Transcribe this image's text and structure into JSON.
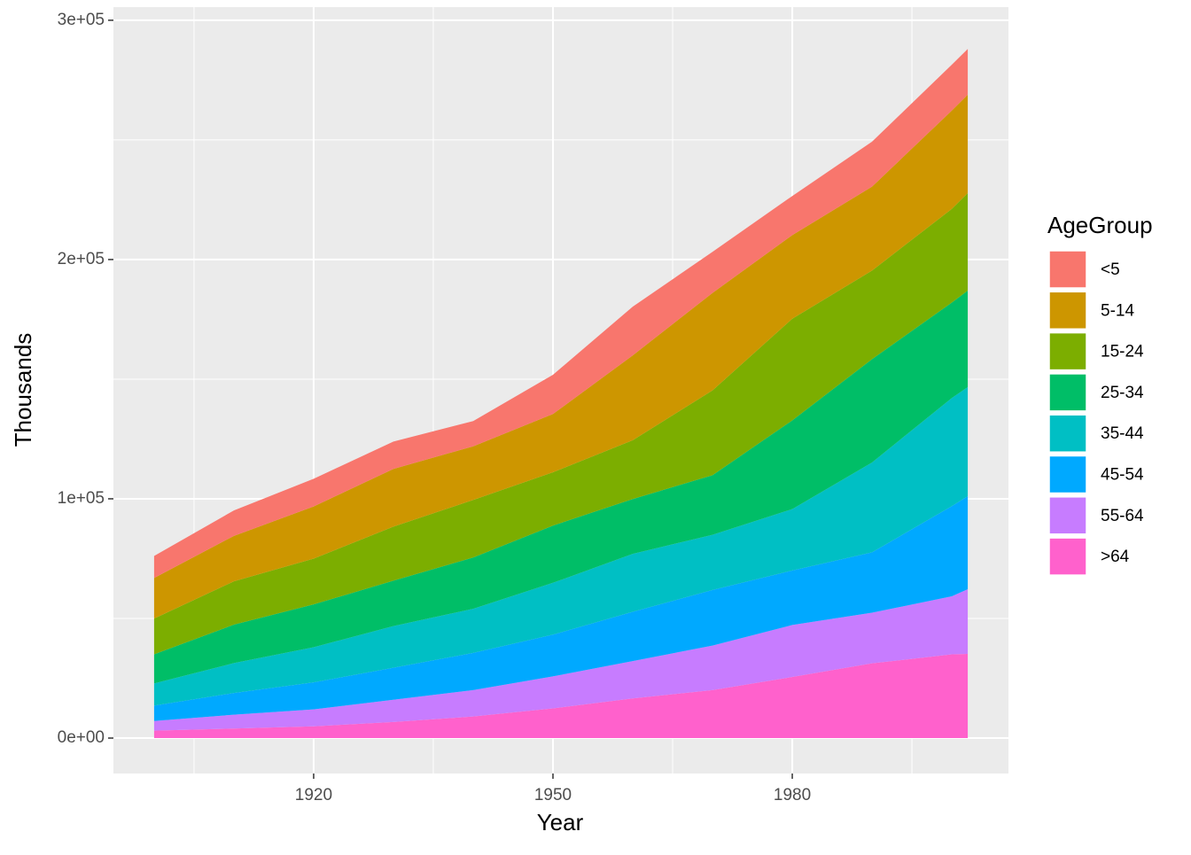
{
  "chart_data": {
    "type": "stacked_area",
    "x_label": "Year",
    "y_label": "Thousands",
    "legend_title": "AgeGroup",
    "x": [
      1900,
      1910,
      1920,
      1930,
      1940,
      1950,
      1960,
      1970,
      1980,
      1990,
      2000,
      2002
    ],
    "series": [
      {
        "name": "<5",
        "color": "#F8766D",
        "values": [
          9181,
          10631,
          11573,
          11444,
          10542,
          16410,
          20341,
          17163,
          16348,
          18765,
          19176,
          19100
        ]
      },
      {
        "name": "5-14",
        "color": "#CD9600",
        "values": [
          16966,
          18989,
          21799,
          24124,
          22431,
          24337,
          35465,
          40746,
          34942,
          35095,
          41078,
          41100
        ]
      },
      {
        "name": "15-24",
        "color": "#7CAE00",
        "values": [
          14951,
          18121,
          19129,
          22544,
          24034,
          22276,
          24576,
          35441,
          42487,
          37013,
          39184,
          40800
        ]
      },
      {
        "name": "25-34",
        "color": "#00BE67",
        "values": [
          12161,
          16063,
          17896,
          19010,
          21446,
          23928,
          22919,
          24907,
          37082,
          43176,
          39892,
          40300
        ]
      },
      {
        "name": "35-44",
        "color": "#00BFC4",
        "values": [
          9273,
          12483,
          14678,
          17388,
          18422,
          21637,
          24221,
          23088,
          25635,
          37579,
          45149,
          45600
        ]
      },
      {
        "name": "45-54",
        "color": "#00A9FF",
        "values": [
          6437,
          9070,
          11296,
          13376,
          15555,
          17453,
          20578,
          23220,
          22800,
          25223,
          37678,
          38900
        ]
      },
      {
        "name": "55-64",
        "color": "#C77CFF",
        "values": [
          4026,
          5794,
          7063,
          9328,
          11027,
          13396,
          15625,
          18590,
          21703,
          21148,
          24275,
          27000
        ]
      },
      {
        "name": ">64",
        "color": "#FF61CC",
        "values": [
          3099,
          3986,
          4933,
          6705,
          9031,
          12397,
          16560,
          20066,
          25549,
          31242,
          34992,
          35200
        ]
      }
    ],
    "xlim": [
      1894.9,
      2007.1
    ],
    "xticks": [
      1920,
      1950,
      1980
    ],
    "xminorticks": [
      1905,
      1935,
      1965,
      1995
    ],
    "ylim": [
      -14800,
      305500
    ],
    "yticks": [
      {
        "value": 0,
        "label": "0e+00"
      },
      {
        "value": 100000,
        "label": "1e+05"
      },
      {
        "value": 200000,
        "label": "2e+05"
      },
      {
        "value": 300000,
        "label": "3e+05"
      }
    ],
    "yminorticks": [
      50000,
      150000,
      250000
    ],
    "grid": true,
    "legend": "right"
  }
}
